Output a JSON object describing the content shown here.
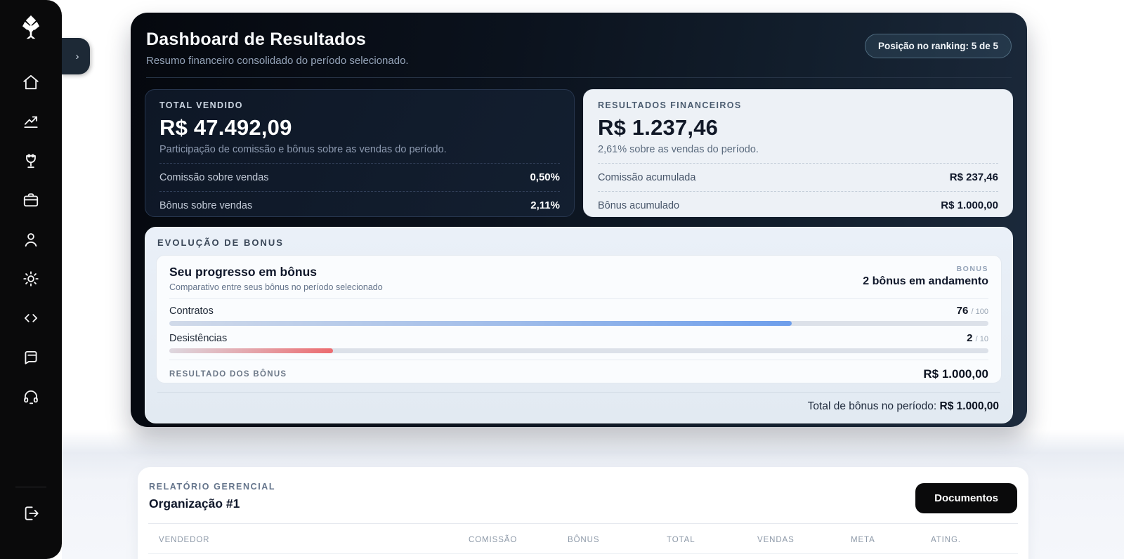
{
  "colors": {
    "sidebar_bg": "#0a0a0b",
    "hero_bg_dark": "#0b121d",
    "accent_blue": "#6d9eeb",
    "accent_red": "#ec6b6f",
    "light_card": "#edf1f6",
    "button_black": "#0a0a0b"
  },
  "sidebar": {
    "expand_chevron": "›",
    "icons": [
      "tree-logo",
      "home",
      "trending-up",
      "trophy",
      "briefcase",
      "user",
      "sun",
      "code",
      "notes",
      "headset",
      "logout"
    ]
  },
  "hero": {
    "title": "Dashboard de Resultados",
    "subtitle": "Resumo financeiro consolidado do período selecionado.",
    "ranking_badge": "Posição no ranking: 5 de 5",
    "total_vendido": {
      "label": "TOTAL VENDIDO",
      "value": "R$ 47.492,09",
      "description": "Participação de comissão e bônus sobre as vendas do período.",
      "rows": [
        {
          "label": "Comissão sobre vendas",
          "value": "0,50%"
        },
        {
          "label": "Bônus sobre vendas",
          "value": "2,11%"
        }
      ]
    },
    "resultados_financeiros": {
      "label": "RESULTADOS FINANCEIROS",
      "value": "R$ 1.237,46",
      "description": "2,61% sobre as vendas do período.",
      "rows": [
        {
          "label": "Comissão acumulada",
          "value": "R$ 237,46"
        },
        {
          "label": "Bônus acumulado",
          "value": "R$ 1.000,00"
        }
      ]
    },
    "evolucao": {
      "section_label": "EVOLUÇÃO DE BONUS",
      "card_title": "Seu progresso em bônus",
      "card_subtitle": "Comparativo entre seus bônus no período selecionado",
      "bonus_label": "BONUS",
      "bonus_status": "2 bônus em andamento",
      "bars": [
        {
          "label": "Contratos",
          "value": "76",
          "max": "/ 100",
          "percent": 76
        },
        {
          "label": "Desistências",
          "value": "2",
          "max": "/ 10",
          "percent": 20
        }
      ],
      "result_label": "RESULTADO DOS BÔNUS",
      "result_value": "R$ 1.000,00",
      "total_label": "Total de bônus no período: ",
      "total_value": "R$ 1.000,00"
    }
  },
  "report": {
    "section_label": "RELATÓRIO GERENCIAL",
    "title": "Organização #1",
    "documents_button": "Documentos",
    "table_headers": [
      "VENDEDOR",
      "COMISSÃO",
      "BÔNUS",
      "TOTAL",
      "VENDAS",
      "META",
      "ATING."
    ]
  }
}
